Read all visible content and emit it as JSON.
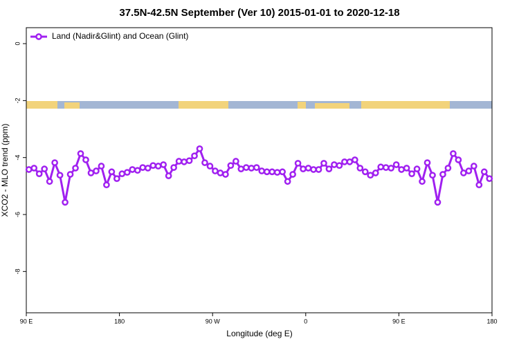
{
  "chart_data": {
    "type": "line",
    "title": "37.5N-42.5N September (Ver 10)   2015-01-01 to 2020-12-18",
    "x_label": "Longitude (deg E)",
    "y_label": "XCO2 - MLO trend (ppm)",
    "xlim": [
      90,
      540
    ],
    "xticks": [
      {
        "value": 90,
        "label": "90 E"
      },
      180,
      {
        "value": 270,
        "label": "90 W"
      },
      {
        "value": 360,
        "label": "0"
      },
      {
        "value": 450,
        "label": "90 E"
      },
      {
        "value": 540,
        "label": "180"
      }
    ],
    "ylim": [
      -9.45,
      0.56
    ],
    "yticks": [
      0,
      -2,
      -4,
      -6,
      -8
    ],
    "legend": "top-left",
    "x": [
      92.5,
      97.5,
      102.5,
      107.5,
      112.5,
      117.5,
      122.5,
      127.5,
      132.5,
      137.5,
      142.5,
      147.5,
      152.5,
      157.5,
      162.5,
      167.5,
      172.5,
      177.5,
      182.5,
      187.5,
      192.5,
      197.5,
      202.5,
      207.5,
      212.5,
      217.5,
      222.5,
      227.5,
      232.5,
      237.5,
      242.5,
      247.5,
      252.5,
      257.5,
      262.5,
      267.5,
      272.5,
      277.5,
      282.5,
      287.5,
      292.5,
      297.5,
      302.5,
      307.5,
      312.5,
      317.5,
      322.5,
      327.5,
      332.5,
      337.5,
      342.5,
      347.5,
      352.5,
      357.5,
      362.5,
      367.5,
      372.5,
      377.5,
      382.5,
      387.5,
      392.5,
      397.5,
      402.5,
      407.5,
      412.5,
      417.5,
      422.5,
      427.5,
      432.5,
      437.5,
      442.5,
      447.5,
      452.5,
      457.5,
      462.5,
      467.5,
      472.5,
      477.5,
      482.5,
      487.5,
      492.5,
      497.5,
      502.5,
      507.5,
      512.5,
      517.5,
      522.5,
      527.5,
      532.5,
      537.5
    ],
    "series": [
      {
        "name": "Land (Nadir&Glint) and Ocean (Glint)",
        "color": "#a020f0",
        "values": [
          -4.42,
          -4.37,
          -4.57,
          -4.4,
          -4.84,
          -4.18,
          -4.62,
          -5.57,
          -4.59,
          -4.37,
          -3.86,
          -4.08,
          -4.54,
          -4.47,
          -4.3,
          -4.96,
          -4.5,
          -4.74,
          -4.57,
          -4.52,
          -4.42,
          -4.45,
          -4.35,
          -4.37,
          -4.28,
          -4.3,
          -4.25,
          -4.64,
          -4.35,
          -4.13,
          -4.15,
          -4.11,
          -3.94,
          -3.69,
          -4.18,
          -4.3,
          -4.47,
          -4.54,
          -4.59,
          -4.28,
          -4.13,
          -4.4,
          -4.35,
          -4.37,
          -4.35,
          -4.47,
          -4.5,
          -4.5,
          -4.52,
          -4.5,
          -4.84,
          -4.59,
          -4.2,
          -4.4,
          -4.37,
          -4.42,
          -4.42,
          -4.2,
          -4.4,
          -4.25,
          -4.28,
          -4.15,
          -4.15,
          -4.08,
          -4.37,
          -4.5,
          -4.62,
          -4.54,
          -4.33,
          -4.35,
          -4.37,
          -4.25,
          -4.42,
          -4.37,
          -4.57,
          -4.4,
          -4.84,
          -4.18,
          -4.62,
          -5.57,
          -4.59,
          -4.37,
          -3.86,
          -4.08,
          -4.54,
          -4.47,
          -4.3,
          -4.96,
          -4.5,
          -4.74
        ]
      }
    ]
  }
}
